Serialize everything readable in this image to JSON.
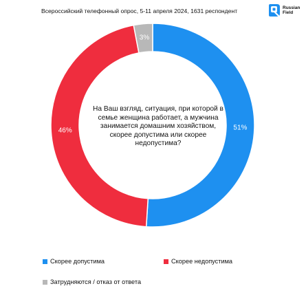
{
  "header": {
    "caption": "Всероссийский телефонный опрос, 5-11 апреля 2024, 1631 респондент",
    "brand_name": "Russian Field",
    "logo_icon": "russian-field-logo-icon"
  },
  "chart_data": {
    "type": "pie",
    "donut": true,
    "center_text": "На Ваш взгляд, ситуация, при которой в семье женщина работает, а мужчина занимается домашним хозяйством, скорее допустима или скорее недопустима?",
    "categories": [
      "Скорее допустима",
      "Скорее недопустима",
      "Затрудняются / отказ от ответа"
    ],
    "values": [
      51,
      46,
      3
    ],
    "labels": [
      "51%",
      "46%",
      "3%"
    ],
    "colors": [
      "#1E90F0",
      "#EF2D3E",
      "#B8B8B8"
    ],
    "legend_position": "bottom"
  },
  "colors": {
    "blue": "#1E90F0",
    "red": "#EF2D3E",
    "gray": "#B8B8B8",
    "brand": "#1E90F0"
  }
}
